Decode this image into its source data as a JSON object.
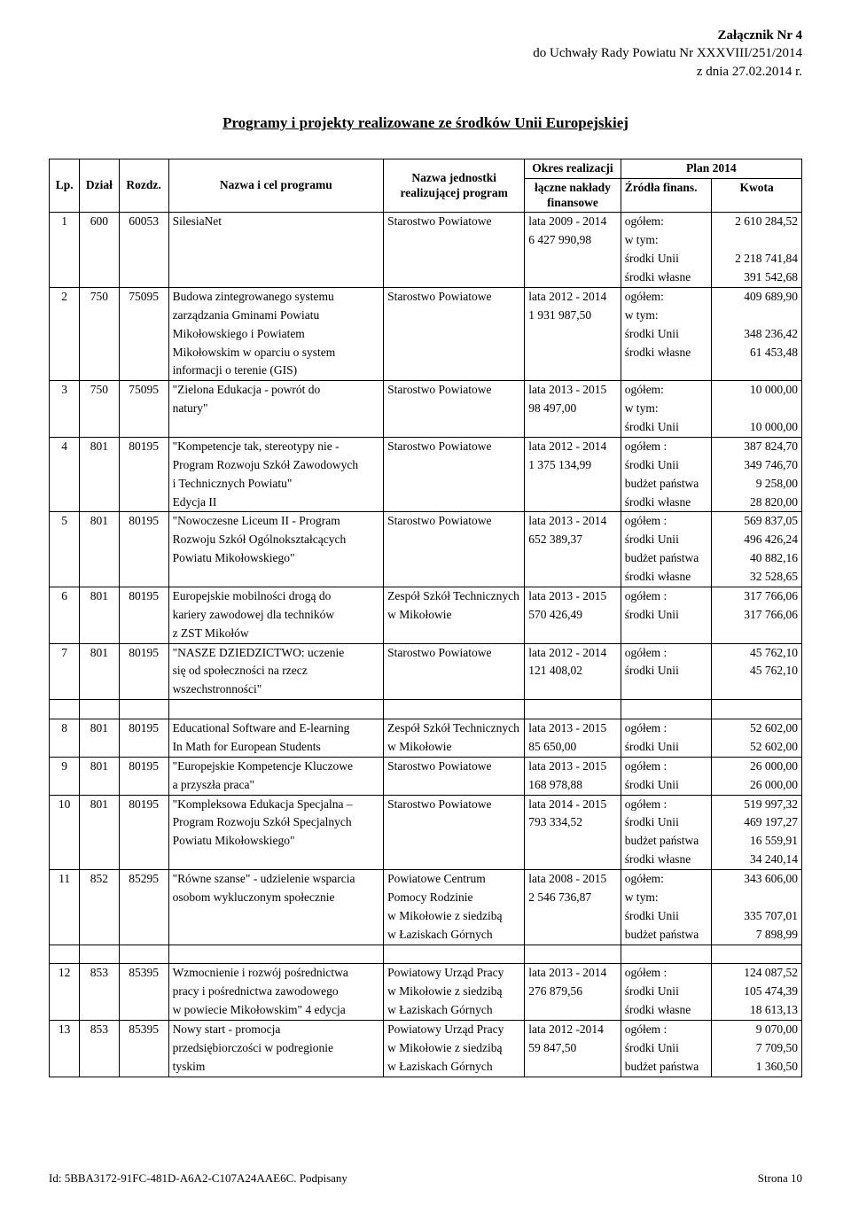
{
  "header": {
    "line1": "Załącznik Nr 4",
    "line2": "do Uchwały Rady Powiatu Nr XXXVIII/251/2014",
    "line3": "z dnia 27.02.2014 r."
  },
  "title": "Programy i projekty realizowane ze środków Unii Europejskiej",
  "cols": {
    "lp": "Lp.",
    "dzial": "Dział",
    "rozdz": "Rozdz.",
    "nazwa": "Nazwa i cel programu",
    "jedn": "Nazwa jednostki realizującej program",
    "okres_group": "Okres realizacji",
    "plan_group": "Plan 2014",
    "okres": "łączne nakłady finansowe",
    "zrodla": "Źródła finans.",
    "kwota": "Kwota"
  },
  "rows": [
    {
      "lp": "1",
      "dzial": "600",
      "rozdz": "60053",
      "nazwa": [
        "SilesiaNet",
        "",
        "",
        ""
      ],
      "jedn": [
        "Starostwo Powiatowe",
        "",
        "",
        ""
      ],
      "okres": [
        "lata 2009 - 2014",
        "6 427 990,98",
        "",
        ""
      ],
      "zrodla": [
        "ogółem:",
        "w tym:",
        "środki Unii",
        "środki własne"
      ],
      "kwota": [
        "2 610 284,52",
        "",
        "2 218 741,84",
        "391 542,68"
      ]
    },
    {
      "lp": "2",
      "dzial": "750",
      "rozdz": "75095",
      "nazwa": [
        "Budowa zintegrowanego systemu",
        "zarządzania Gminami Powiatu",
        "Mikołowskiego i Powiatem",
        "Mikołowskim w oparciu o system",
        "informacji o terenie (GIS)"
      ],
      "jedn": [
        "Starostwo Powiatowe",
        "",
        "",
        "",
        ""
      ],
      "okres": [
        "lata 2012 - 2014",
        "1 931 987,50",
        "",
        "",
        ""
      ],
      "zrodla": [
        "ogółem:",
        "w tym:",
        "środki Unii",
        "środki własne",
        ""
      ],
      "kwota": [
        "409 689,90",
        "",
        "348 236,42",
        "61 453,48",
        ""
      ]
    },
    {
      "lp": "3",
      "dzial": "750",
      "rozdz": "75095",
      "nazwa": [
        "\"Zielona Edukacja - powrót do",
        "natury\"",
        ""
      ],
      "jedn": [
        "Starostwo Powiatowe",
        "",
        ""
      ],
      "okres": [
        "lata 2013 - 2015",
        "98 497,00",
        ""
      ],
      "zrodla": [
        "ogółem:",
        "w tym:",
        "środki Unii"
      ],
      "kwota": [
        "10 000,00",
        "",
        "10 000,00"
      ]
    },
    {
      "lp": "4",
      "dzial": "801",
      "rozdz": "80195",
      "nazwa": [
        "\"Kompetencje tak, stereotypy nie -",
        "Program Rozwoju Szkół Zawodowych",
        "i Technicznych Powiatu\"",
        "Edycja II"
      ],
      "jedn": [
        "Starostwo Powiatowe",
        "",
        "",
        ""
      ],
      "okres": [
        "lata 2012 - 2014",
        "1 375 134,99",
        "",
        ""
      ],
      "zrodla": [
        "ogółem :",
        "środki Unii",
        "budżet państwa",
        "środki własne"
      ],
      "kwota": [
        "387 824,70",
        "349 746,70",
        "9 258,00",
        "28 820,00"
      ]
    },
    {
      "lp": "5",
      "dzial": "801",
      "rozdz": "80195",
      "nazwa": [
        "\"Nowoczesne Liceum II - Program",
        "Rozwoju Szkół Ogólnokształcących",
        "Powiatu Mikołowskiego\"",
        ""
      ],
      "jedn": [
        "Starostwo Powiatowe",
        "",
        "",
        ""
      ],
      "okres": [
        "lata 2013 - 2014",
        "652 389,37",
        "",
        ""
      ],
      "zrodla": [
        "ogółem :",
        "środki Unii",
        "budżet państwa",
        "środki własne"
      ],
      "kwota": [
        "569 837,05",
        "496 426,24",
        "40 882,16",
        "32 528,65"
      ]
    },
    {
      "lp": "6",
      "dzial": "801",
      "rozdz": "80195",
      "nazwa": [
        "Europejskie mobilności drogą do",
        "kariery zawodowej dla techników",
        "z ZST Mikołów"
      ],
      "jedn": [
        "Zespół Szkół Technicznych",
        "w Mikołowie",
        ""
      ],
      "okres": [
        "lata 2013 - 2015",
        "570 426,49",
        ""
      ],
      "zrodla": [
        "ogółem :",
        "środki Unii",
        ""
      ],
      "kwota": [
        "317 766,06",
        "317 766,06",
        ""
      ]
    },
    {
      "lp": "7",
      "dzial": "801",
      "rozdz": "80195",
      "nazwa": [
        "\"NASZE DZIEDZICTWO: uczenie",
        "się od społeczności na rzecz",
        "wszechstronności\""
      ],
      "jedn": [
        "Starostwo Powiatowe",
        "",
        ""
      ],
      "okres": [
        "lata 2012 - 2014",
        "121 408,02",
        ""
      ],
      "zrodla": [
        "ogółem :",
        "środki Unii",
        ""
      ],
      "kwota": [
        "45 762,10",
        "45 762,10",
        ""
      ]
    },
    {
      "lp": "8",
      "dzial": "801",
      "rozdz": "80195",
      "nazwa": [
        "Educational Software and  E-learning",
        "In Math for European Students"
      ],
      "jedn": [
        "Zespół Szkół Technicznych",
        "w Mikołowie"
      ],
      "okres": [
        "lata 2013 - 2015",
        "85 650,00"
      ],
      "zrodla": [
        "ogółem :",
        "środki Unii"
      ],
      "kwota": [
        "52 602,00",
        "52 602,00"
      ]
    },
    {
      "lp": "9",
      "dzial": "801",
      "rozdz": "80195",
      "nazwa": [
        "\"Europejskie Kompetencje Kluczowe",
        "a przyszła praca\""
      ],
      "jedn": [
        "Starostwo Powiatowe",
        ""
      ],
      "okres": [
        "lata 2013 - 2015",
        "168 978,88"
      ],
      "zrodla": [
        "ogółem :",
        "środki Unii"
      ],
      "kwota": [
        "26 000,00",
        "26 000,00"
      ]
    },
    {
      "lp": "10",
      "dzial": "801",
      "rozdz": "80195",
      "nazwa": [
        "\"Kompleksowa Edukacja Specjalna –",
        "Program Rozwoju Szkół Specjalnych",
        "Powiatu Mikołowskiego\"",
        ""
      ],
      "jedn": [
        "Starostwo Powiatowe",
        "",
        "",
        ""
      ],
      "okres": [
        "lata 2014 - 2015",
        "793 334,52",
        "",
        ""
      ],
      "zrodla": [
        "ogółem :",
        "środki Unii",
        "budżet państwa",
        "środki własne"
      ],
      "kwota": [
        "519 997,32",
        "469 197,27",
        "16 559,91",
        "34 240,14"
      ]
    },
    {
      "lp": "11",
      "dzial": "852",
      "rozdz": "85295",
      "nazwa": [
        "\"Równe szanse\" - udzielenie wsparcia",
        "osobom wykluczonym społecznie",
        "",
        ""
      ],
      "jedn": [
        "Powiatowe Centrum",
        "Pomocy Rodzinie",
        "w Mikołowie z siedzibą",
        "w Łaziskach Górnych"
      ],
      "okres": [
        "lata 2008 - 2015",
        "2 546 736,87",
        "",
        ""
      ],
      "zrodla": [
        "ogółem:",
        "w tym:",
        "środki Unii",
        "budżet państwa"
      ],
      "kwota": [
        "343 606,00",
        "",
        "335 707,01",
        "7 898,99"
      ]
    },
    {
      "lp": "12",
      "dzial": "853",
      "rozdz": "85395",
      "nazwa": [
        "Wzmocnienie i rozwój pośrednictwa",
        "pracy i pośrednictwa zawodowego",
        "w powiecie Mikołowskim\" 4 edycja"
      ],
      "jedn": [
        "Powiatowy Urząd Pracy",
        "w Mikołowie z siedzibą",
        "w Łaziskach Górnych"
      ],
      "okres": [
        "lata 2013 - 2014",
        "276 879,56",
        ""
      ],
      "zrodla": [
        "ogółem :",
        "środki Unii",
        "środki własne"
      ],
      "kwota": [
        "124 087,52",
        "105 474,39",
        "18 613,13"
      ]
    },
    {
      "lp": "13",
      "dzial": "853",
      "rozdz": "85395",
      "nazwa": [
        "Nowy start - promocja",
        "przedsiębiorczości w podregionie",
        "tyskim"
      ],
      "jedn": [
        "Powiatowy Urząd Pracy",
        "w Mikołowie z siedzibą",
        "w Łaziskach Górnych"
      ],
      "okres": [
        "lata 2012 -2014",
        "59 847,50",
        ""
      ],
      "zrodla": [
        "ogółem :",
        "środki Unii",
        "budżet państwa"
      ],
      "kwota": [
        "9 070,00",
        "7 709,50",
        "1 360,50"
      ]
    }
  ],
  "gaps_after": [
    "7",
    "11"
  ],
  "footer": {
    "left": "Id: 5BBA3172-91FC-481D-A6A2-C107A24AAE6C. Podpisany",
    "right": "Strona 10"
  }
}
